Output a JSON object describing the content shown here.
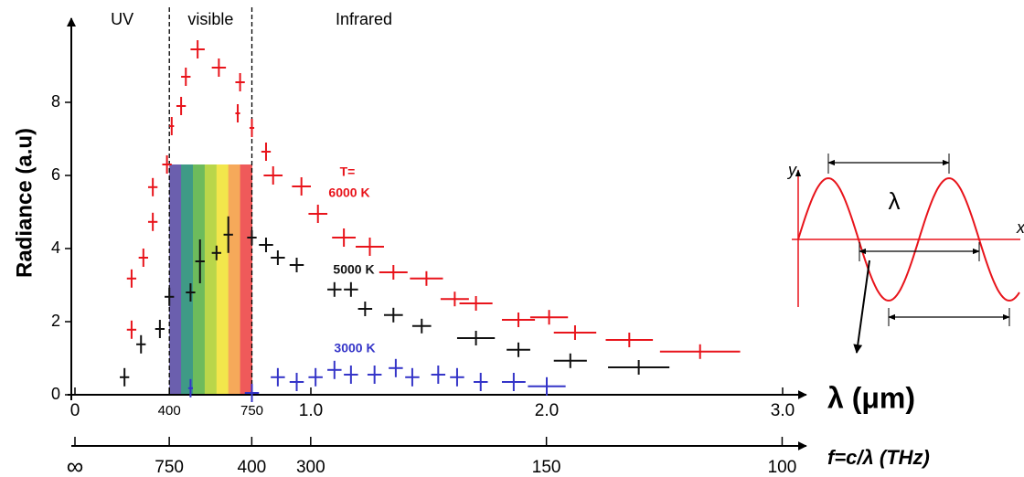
{
  "chart_data": {
    "type": "errorbar",
    "ylabel": "Radiance (a.u)",
    "xlabel": "λ (μm)",
    "x2label": "f=c/λ (THz)",
    "annotation": "T=",
    "regions": [
      {
        "name": "UV"
      },
      {
        "name": "visible"
      },
      {
        "name": "Infrared"
      }
    ],
    "region_bounds": [
      0.4,
      0.75
    ],
    "spectrum_band": {
      "xlim": [
        0.4,
        0.75
      ],
      "top": 6.3,
      "colors": [
        "#6b5fae",
        "#3f9a86",
        "#6dbb5c",
        "#b9d64a",
        "#f2e64c",
        "#f6a95a",
        "#ef5a5a"
      ]
    },
    "xlim": [
      0,
      3.1
    ],
    "ylim": [
      0,
      10
    ],
    "xticks": [
      0,
      {
        "value": 0.4,
        "label": "400"
      },
      {
        "value": 0.75,
        "label": "750"
      },
      {
        "value": 1,
        "label": "1.0"
      },
      {
        "value": 2,
        "label": "2.0"
      },
      {
        "value": 3,
        "label": "3.0"
      }
    ],
    "yticks": [
      0,
      2,
      4,
      6,
      8
    ],
    "x2scale": "reciprocal",
    "x2ticks": [
      {
        "value": null,
        "label": "∞"
      },
      750,
      400,
      300,
      150,
      100
    ],
    "series": [
      {
        "name": "6000 K",
        "color": "#e8141b",
        "x": [
          0.24,
          0.24,
          0.29,
          0.33,
          0.33,
          0.39,
          0.41,
          0.45,
          0.47,
          0.52,
          0.61,
          0.7,
          0.69,
          0.75,
          0.81,
          0.84,
          0.96,
          1.03,
          1.14,
          1.25,
          1.35,
          1.49,
          1.61,
          1.7,
          1.88,
          2.01,
          2.12,
          2.35,
          2.65
        ],
        "values": [
          1.78,
          3.18,
          3.75,
          4.73,
          5.68,
          6.3,
          7.35,
          7.9,
          8.7,
          9.45,
          8.95,
          8.55,
          7.7,
          7.3,
          6.65,
          6.0,
          5.7,
          4.95,
          4.3,
          4.05,
          3.35,
          3.18,
          2.62,
          2.5,
          2.05,
          2.12,
          1.7,
          1.5,
          1.18
        ],
        "xerr": [
          0.02,
          0.02,
          0.02,
          0.02,
          0.02,
          0.02,
          0.01,
          0.02,
          0.02,
          0.03,
          0.03,
          0.02,
          0.01,
          0.01,
          0.02,
          0.04,
          0.04,
          0.04,
          0.05,
          0.06,
          0.06,
          0.07,
          0.06,
          0.07,
          0.07,
          0.08,
          0.09,
          0.1,
          0.17
        ],
        "yerr": [
          0.25,
          0.25,
          0.25,
          0.25,
          0.25,
          0.25,
          0.25,
          0.25,
          0.25,
          0.25,
          0.25,
          0.25,
          0.25,
          0.25,
          0.25,
          0.25,
          0.25,
          0.25,
          0.25,
          0.25,
          0.2,
          0.2,
          0.2,
          0.2,
          0.2,
          0.2,
          0.2,
          0.2,
          0.2
        ]
      },
      {
        "name": "5000 K",
        "color": "#111111",
        "x": [
          0.21,
          0.28,
          0.36,
          0.4,
          0.49,
          0.53,
          0.6,
          0.65,
          0.75,
          0.81,
          0.86,
          0.94,
          1.1,
          1.17,
          1.23,
          1.35,
          1.47,
          1.7,
          1.88,
          2.1,
          2.39
        ],
        "values": [
          0.48,
          1.38,
          1.8,
          2.68,
          2.8,
          3.65,
          3.88,
          4.38,
          4.3,
          4.1,
          3.75,
          3.55,
          2.88,
          2.88,
          2.35,
          2.18,
          1.88,
          1.55,
          1.23,
          0.93,
          0.75
        ],
        "xerr": [
          0.02,
          0.02,
          0.02,
          0.02,
          0.02,
          0.02,
          0.02,
          0.02,
          0.02,
          0.03,
          0.03,
          0.03,
          0.03,
          0.03,
          0.03,
          0.04,
          0.04,
          0.08,
          0.05,
          0.07,
          0.13
        ],
        "yerr": [
          0.25,
          0.25,
          0.25,
          0.25,
          0.25,
          0.6,
          0.2,
          0.5,
          0.2,
          0.2,
          0.2,
          0.2,
          0.2,
          0.2,
          0.2,
          0.2,
          0.2,
          0.2,
          0.2,
          0.2,
          0.2
        ]
      },
      {
        "name": "3000 K",
        "color": "#3535c8",
        "x": [
          0.49,
          0.75,
          0.86,
          0.94,
          1.02,
          1.1,
          1.17,
          1.27,
          1.36,
          1.43,
          1.54,
          1.62,
          1.72,
          1.86,
          2.0
        ],
        "values": [
          0.18,
          0.05,
          0.48,
          0.35,
          0.48,
          0.68,
          0.55,
          0.55,
          0.73,
          0.48,
          0.55,
          0.48,
          0.35,
          0.35,
          0.23
        ],
        "xerr": [
          0.01,
          0.03,
          0.03,
          0.03,
          0.03,
          0.03,
          0.03,
          0.03,
          0.03,
          0.03,
          0.03,
          0.03,
          0.03,
          0.05,
          0.08
        ],
        "yerr": [
          0.25,
          0.25,
          0.25,
          0.25,
          0.25,
          0.25,
          0.25,
          0.25,
          0.25,
          0.25,
          0.25,
          0.25,
          0.25,
          0.25,
          0.25
        ]
      }
    ],
    "inset": {
      "y_label": "y",
      "x_label": "x",
      "wavelength_label": "λ"
    }
  }
}
